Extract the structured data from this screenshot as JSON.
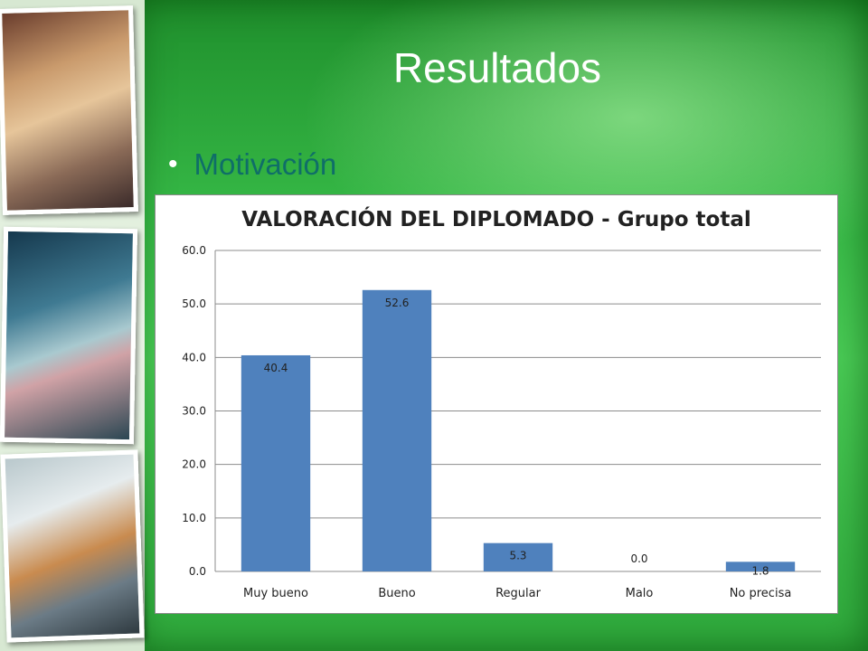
{
  "slide": {
    "title": "Resultados",
    "bullet": "Motivación"
  },
  "colors": {
    "background": "#34b544",
    "title_text": "#ffffff",
    "bullet_text": "#0f6e68",
    "bar_fill": "#4f81bd"
  },
  "chart_data": {
    "type": "bar",
    "title": "VALORACIÓN DEL DIPLOMADO - Grupo total",
    "xlabel": "",
    "ylabel": "",
    "categories": [
      "Muy bueno",
      "Bueno",
      "Regular",
      "Malo",
      "No precisa"
    ],
    "values": [
      40.4,
      52.6,
      5.3,
      0.0,
      1.8
    ],
    "value_labels": [
      "40.4",
      "52.6",
      "5.3",
      "0.0",
      "1.8"
    ],
    "ylim": [
      0,
      60
    ],
    "yticks": [
      "0.0",
      "10.0",
      "20.0",
      "30.0",
      "40.0",
      "50.0",
      "60.0"
    ],
    "grid": true,
    "legend": "none"
  }
}
